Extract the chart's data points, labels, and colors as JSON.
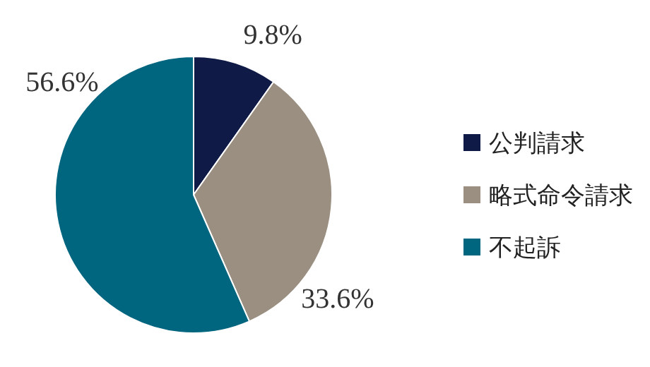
{
  "chart_data": {
    "type": "pie",
    "categories": [
      "公判請求",
      "略式命令請求",
      "不起訴"
    ],
    "values": [
      9.8,
      33.6,
      56.6
    ],
    "value_labels": [
      "9.8%",
      "33.6%",
      "56.6%"
    ],
    "colors": [
      "#0f1a47",
      "#9a8f81",
      "#00657e"
    ],
    "legend": "right"
  }
}
